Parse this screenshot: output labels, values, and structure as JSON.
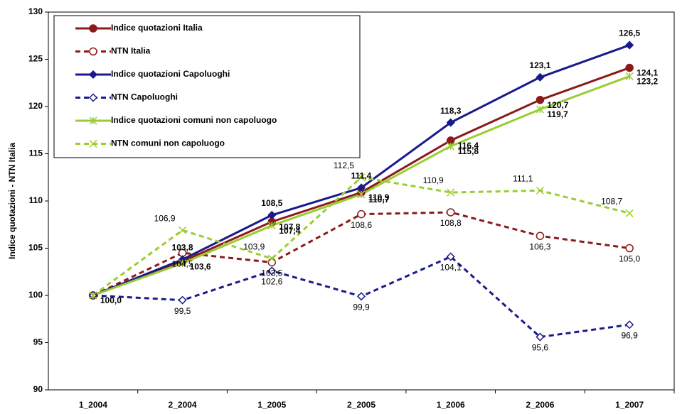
{
  "chart_data": {
    "type": "line",
    "y_label": "Indice quotazioni - NTN Italia",
    "categories": [
      "1_2004",
      "2_2004",
      "1_2005",
      "2_2005",
      "1_2006",
      "2_2006",
      "1_2007"
    ],
    "ylim": [
      90,
      130
    ],
    "yticks": [
      90,
      95,
      100,
      105,
      110,
      115,
      120,
      125,
      130
    ],
    "grid": false,
    "legend": "upper left",
    "series": [
      {
        "name": "Indice quotazioni Italia",
        "color": "#8b1a1a",
        "dashed": false,
        "marker": "circle",
        "bold_labels": true,
        "values": [
          100.0,
          103.6,
          107.8,
          110.9,
          116.4,
          120.7,
          124.1
        ],
        "value_labels": [
          "100,0",
          "103,6",
          "107,8",
          "110,9",
          "116,4",
          "120,7",
          "124,1"
        ]
      },
      {
        "name": "NTN Italia",
        "color": "#8b1a1a",
        "dashed": true,
        "marker": "open-circle",
        "bold_labels": false,
        "values": [
          100.0,
          104.5,
          103.5,
          108.6,
          108.8,
          106.3,
          105.0
        ],
        "value_labels": [
          null,
          "104,5",
          "103,5",
          "108,6",
          "108,8",
          "106,3",
          "105,0"
        ]
      },
      {
        "name": "Indice quotazioni Capoluoghi",
        "color": "#1a1a8c",
        "dashed": false,
        "marker": "diamond",
        "bold_labels": true,
        "values": [
          100.0,
          103.8,
          108.5,
          111.4,
          118.3,
          123.1,
          126.5
        ],
        "value_labels": [
          null,
          "103,8",
          "108,5",
          "111,4",
          "118,3",
          "123,1",
          "126,5"
        ]
      },
      {
        "name": "NTN Capoluoghi",
        "color": "#1a1a8c",
        "dashed": true,
        "marker": "open-diamond",
        "bold_labels": false,
        "values": [
          100.0,
          99.5,
          102.6,
          99.9,
          104.1,
          95.6,
          96.9
        ],
        "value_labels": [
          null,
          "99,5",
          "102,6",
          "99,9",
          "104,1",
          "95,6",
          "96,9"
        ]
      },
      {
        "name": "Indice quotazioni comuni non capoluogo",
        "color": "#9acd32",
        "dashed": false,
        "marker": "star",
        "bold_labels": true,
        "values": [
          100.0,
          103.4,
          107.4,
          110.7,
          115.8,
          119.7,
          123.2
        ],
        "value_labels": [
          null,
          null,
          "107,4",
          "110,7",
          "115,8",
          "119,7",
          "123,2"
        ]
      },
      {
        "name": "NTN comuni non capoluogo",
        "color": "#9acd32",
        "dashed": true,
        "marker": "x",
        "bold_labels": false,
        "values": [
          100.0,
          106.9,
          103.9,
          112.5,
          110.9,
          111.1,
          108.7
        ],
        "value_labels": [
          null,
          "106,9",
          "103,9",
          "112,5",
          "110,9",
          "111,1",
          "108,7"
        ]
      }
    ]
  }
}
